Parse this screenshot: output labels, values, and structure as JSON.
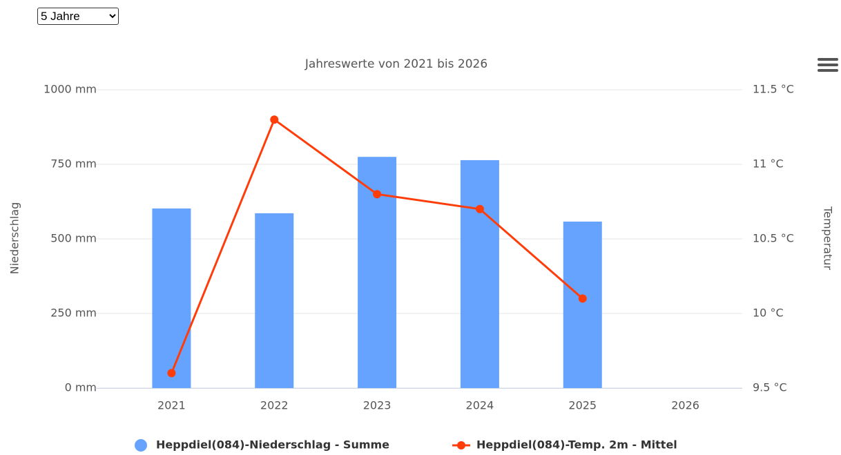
{
  "dropdown": "5 Jahre",
  "chart_data": {
    "type": "bar",
    "title": "Jahreswerte von 2021 bis 2026",
    "y_label": "Niederschlag",
    "y2_label": "Temperatur",
    "categories": [
      "2021",
      "2022",
      "2023",
      "2024",
      "2025",
      "2026"
    ],
    "series": [
      {
        "name": "Heppdiel(084)-Niederschlag - Summe",
        "type": "bar",
        "color": "#66a3ff",
        "values": [
          602,
          586,
          775,
          764,
          558,
          null
        ]
      },
      {
        "name": "Heppdiel(084)-Temp. 2m - Mittel",
        "type": "line",
        "axis": "y2",
        "color": "#ff3d0a",
        "values": [
          9.6,
          11.3,
          10.8,
          10.7,
          10.1,
          null
        ]
      }
    ],
    "ylim": [
      0,
      1000
    ],
    "yticks": [
      {
        "value": 0,
        "label": "0 mm"
      },
      {
        "value": 250,
        "label": "250 mm"
      },
      {
        "value": 500,
        "label": "500 mm"
      },
      {
        "value": 750,
        "label": "750 mm"
      },
      {
        "value": 1000,
        "label": "1000 mm"
      }
    ],
    "y2lim": [
      9.5,
      11.5
    ],
    "y2ticks": [
      {
        "value": 9.5,
        "label": "9.5 °C"
      },
      {
        "value": 10,
        "label": "10 °C"
      },
      {
        "value": 10.5,
        "label": "10.5 °C"
      },
      {
        "value": 11,
        "label": "11 °C"
      },
      {
        "value": 11.5,
        "label": "11.5 °C"
      }
    ],
    "grid": true,
    "legend": "bottom"
  }
}
